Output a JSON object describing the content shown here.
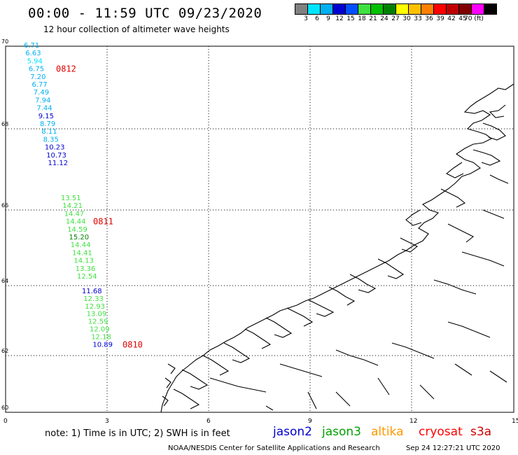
{
  "header": {
    "title": "00:00 - 11:59 UTC 09/23/2020",
    "subtitle": "12 hour collection of altimeter wave heights"
  },
  "color_scale": {
    "labels": [
      "3",
      "6",
      "9",
      "12",
      "15",
      "18",
      "21",
      "24",
      "27",
      "30",
      "33",
      "36",
      "39",
      "42",
      "45",
      "70 (ft)"
    ],
    "colors": [
      "#808080",
      "#00e5ff",
      "#00b0f0",
      "#0000d0",
      "#0050ff",
      "#40e040",
      "#00c000",
      "#008000",
      "#ffff00",
      "#ffc000",
      "#ff8000",
      "#ff0000",
      "#c00000",
      "#800000",
      "#ff00ff",
      "#000000"
    ]
  },
  "axes": {
    "lat_labels": [
      "70",
      "68",
      "66",
      "64",
      "62",
      "60"
    ],
    "lon_labels": [
      "0",
      "3",
      "6",
      "9",
      "12",
      "15"
    ]
  },
  "tracks": [
    {
      "satellite": "jason2",
      "pass": "0812",
      "readings": [
        {
          "v": "6.71",
          "c": "#00b0f0"
        },
        {
          "v": "6.63",
          "c": "#00b0f0"
        },
        {
          "v": "5.94",
          "c": "#00e5ff"
        },
        {
          "v": "6.75",
          "c": "#00b0f0"
        },
        {
          "v": "7.20",
          "c": "#00b0f0"
        },
        {
          "v": "6.77",
          "c": "#00b0f0"
        },
        {
          "v": "7.49",
          "c": "#00b0f0"
        },
        {
          "v": "7.94",
          "c": "#00b0f0"
        },
        {
          "v": "7.44",
          "c": "#00b0f0"
        },
        {
          "v": "9.15",
          "c": "#0000d0"
        },
        {
          "v": "8.79",
          "c": "#00b0f0"
        },
        {
          "v": "8.11",
          "c": "#00b0f0"
        },
        {
          "v": "8.35",
          "c": "#00b0f0"
        },
        {
          "v": "10.23",
          "c": "#0000d0"
        },
        {
          "v": "10.73",
          "c": "#0000d0"
        },
        {
          "v": "11.12",
          "c": "#0000d0"
        }
      ]
    },
    {
      "satellite": "jason3",
      "pass": "0811",
      "readings": [
        {
          "v": "13.51",
          "c": "#40e040"
        },
        {
          "v": "14.21",
          "c": "#40e040"
        },
        {
          "v": "14.47",
          "c": "#40e040"
        },
        {
          "v": "14.44",
          "c": "#40e040"
        },
        {
          "v": "14.59",
          "c": "#40e040"
        },
        {
          "v": "15.20",
          "c": "#008000"
        },
        {
          "v": "14.44",
          "c": "#40e040"
        },
        {
          "v": "14.41",
          "c": "#40e040"
        },
        {
          "v": "14.13",
          "c": "#40e040"
        },
        {
          "v": "13.36",
          "c": "#40e040"
        },
        {
          "v": "12.54",
          "c": "#40e040"
        }
      ]
    },
    {
      "satellite": "cryosat",
      "pass": "0810",
      "readings": [
        {
          "v": "11.68",
          "c": "#0000d0"
        },
        {
          "v": "12.33",
          "c": "#40e040"
        },
        {
          "v": "12.93",
          "c": "#40e040"
        },
        {
          "v": "13.09",
          "c": "#40e040"
        },
        {
          "v": "12.59",
          "c": "#40e040"
        },
        {
          "v": "12.09",
          "c": "#40e040"
        },
        {
          "v": "12.18",
          "c": "#40e040"
        },
        {
          "v": "10.89",
          "c": "#0000d0"
        }
      ]
    }
  ],
  "footer": {
    "note": "note:  1) Time is in UTC;  2) SWH is in feet",
    "satellites": [
      {
        "name": "jason2",
        "color": "#0000d0"
      },
      {
        "name": "jason3",
        "color": "#00a000"
      },
      {
        "name": "altika",
        "color": "#ff9900"
      },
      {
        "name": "cryosat",
        "color": "#ff0000"
      },
      {
        "name": "s3a",
        "color": "#cc0000"
      }
    ],
    "credit": "NOAA/NESDIS Center for Satellite Applications and Research",
    "timestamp": "Sep 24 12:27:21 UTC 2020"
  }
}
